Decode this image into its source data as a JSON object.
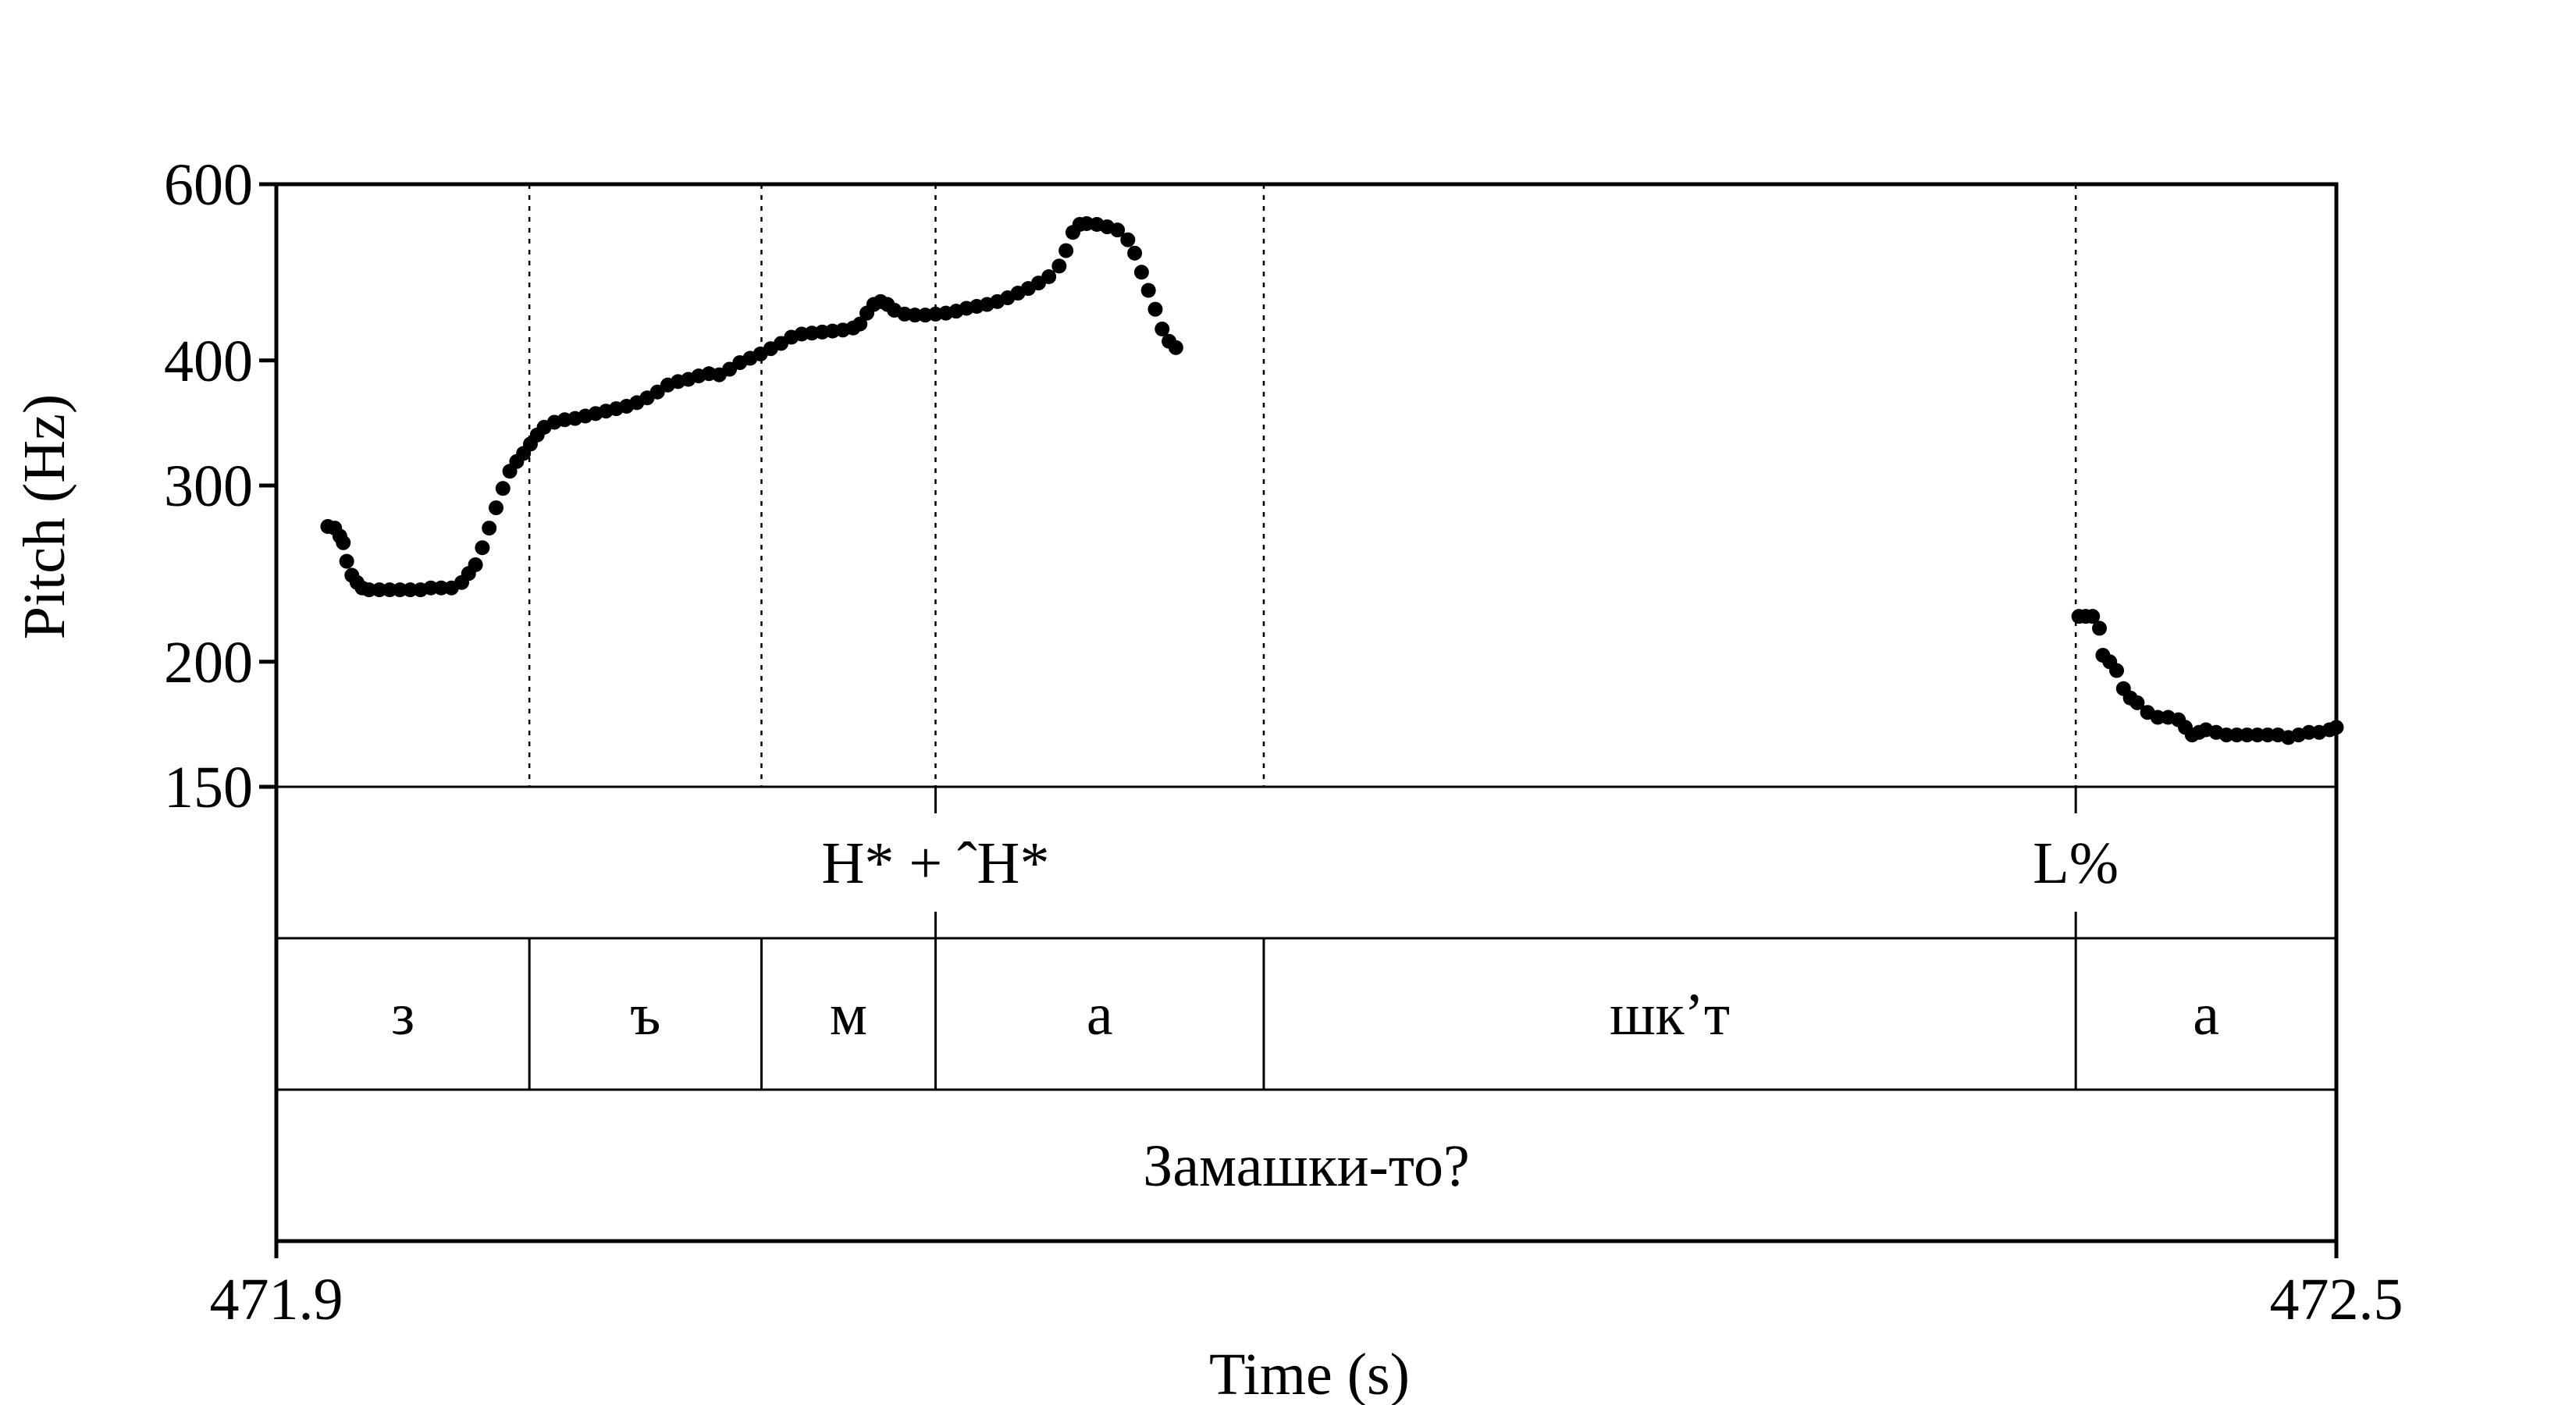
{
  "chart_data": {
    "type": "scatter",
    "title": "",
    "xlabel": "Time (s)",
    "ylabel": "Pitch (Hz)",
    "xlim": [
      471.9,
      472.5
    ],
    "ylim": [
      150,
      600
    ],
    "y_scale": "log",
    "x_tick_labels": [
      "471.9",
      "472.5"
    ],
    "y_ticks": [
      150,
      200,
      300,
      400,
      600
    ],
    "y_tick_labels": [
      "150",
      "200",
      "300",
      "400",
      "600"
    ],
    "grid": false,
    "boundaries": [
      471.9737,
      472.0413,
      472.092,
      472.1876,
      472.4241
    ],
    "tiers": [
      {
        "name": "tones",
        "intervals": [],
        "points": [
          {
            "time": 472.092,
            "label": "H* + ˆH*"
          },
          {
            "time": 472.4241,
            "label": "L%"
          }
        ]
      },
      {
        "name": "phones",
        "intervals": [
          {
            "start": 471.9,
            "end": 471.9737,
            "label": "з"
          },
          {
            "start": 471.9737,
            "end": 472.0413,
            "label": "ъ"
          },
          {
            "start": 472.0413,
            "end": 472.092,
            "label": "м"
          },
          {
            "start": 472.092,
            "end": 472.1876,
            "label": "а"
          },
          {
            "start": 472.1876,
            "end": 472.4241,
            "label": "шк’т"
          },
          {
            "start": 472.4241,
            "end": 472.5,
            "label": "а"
          }
        ],
        "points": []
      },
      {
        "name": "words",
        "intervals": [
          {
            "start": 471.9,
            "end": 472.5,
            "label": "Замашки-то?"
          }
        ],
        "points": []
      }
    ],
    "series": [
      {
        "points": [
          [
            471.915,
            273
          ],
          [
            471.917,
            272
          ],
          [
            471.9185,
            267
          ],
          [
            471.9195,
            263
          ],
          [
            471.9205,
            252
          ],
          [
            471.922,
            244
          ],
          [
            471.9235,
            240
          ],
          [
            471.925,
            237
          ],
          [
            471.927,
            236
          ],
          [
            471.93,
            236
          ],
          [
            471.933,
            236
          ],
          [
            471.936,
            236
          ],
          [
            471.939,
            236
          ],
          [
            471.942,
            236
          ],
          [
            471.945,
            237
          ],
          [
            471.948,
            237
          ],
          [
            471.951,
            237
          ],
          [
            471.954,
            240
          ],
          [
            471.956,
            245
          ],
          [
            471.958,
            250
          ],
          [
            471.96,
            260
          ],
          [
            471.962,
            272
          ],
          [
            471.964,
            285
          ],
          [
            471.966,
            298
          ],
          [
            471.968,
            310
          ],
          [
            471.97,
            317
          ],
          [
            471.972,
            323
          ],
          [
            471.974,
            330
          ],
          [
            471.976,
            337
          ],
          [
            471.978,
            343
          ],
          [
            471.981,
            347
          ],
          [
            471.984,
            349
          ],
          [
            471.987,
            350
          ],
          [
            471.99,
            352
          ],
          [
            471.993,
            354
          ],
          [
            471.996,
            356
          ],
          [
            471.999,
            358
          ],
          [
            472.002,
            360
          ],
          [
            472.005,
            363
          ],
          [
            472.008,
            367
          ],
          [
            472.011,
            372
          ],
          [
            472.014,
            378
          ],
          [
            472.017,
            381
          ],
          [
            472.02,
            383
          ],
          [
            472.023,
            386
          ],
          [
            472.026,
            388
          ],
          [
            472.029,
            387
          ],
          [
            472.032,
            392
          ],
          [
            472.035,
            398
          ],
          [
            472.038,
            402
          ],
          [
            472.041,
            406
          ],
          [
            472.044,
            411
          ],
          [
            472.047,
            416
          ],
          [
            472.05,
            422
          ],
          [
            472.053,
            425
          ],
          [
            472.056,
            426
          ],
          [
            472.059,
            427
          ],
          [
            472.062,
            428
          ],
          [
            472.065,
            429
          ],
          [
            472.068,
            431
          ],
          [
            472.07,
            435
          ],
          [
            472.072,
            446
          ],
          [
            472.074,
            455
          ],
          [
            472.076,
            458
          ],
          [
            472.078,
            455
          ],
          [
            472.08,
            449
          ],
          [
            472.083,
            445
          ],
          [
            472.086,
            444
          ],
          [
            472.089,
            444
          ],
          [
            472.092,
            445
          ],
          [
            472.095,
            446
          ],
          [
            472.098,
            448
          ],
          [
            472.101,
            451
          ],
          [
            472.104,
            453
          ],
          [
            472.107,
            455
          ],
          [
            472.11,
            458
          ],
          [
            472.113,
            462
          ],
          [
            472.116,
            467
          ],
          [
            472.119,
            472
          ],
          [
            472.122,
            478
          ],
          [
            472.125,
            485
          ],
          [
            472.128,
            497
          ],
          [
            472.13,
            515
          ],
          [
            472.132,
            537
          ],
          [
            472.134,
            547
          ],
          [
            472.136,
            548
          ],
          [
            472.139,
            547
          ],
          [
            472.142,
            544
          ],
          [
            472.145,
            540
          ],
          [
            472.148,
            528
          ],
          [
            472.15,
            512
          ],
          [
            472.152,
            490
          ],
          [
            472.154,
            470
          ],
          [
            472.156,
            450
          ],
          [
            472.158,
            430
          ],
          [
            472.16,
            418
          ],
          [
            472.162,
            412
          ],
          [
            472.425,
            222
          ],
          [
            472.427,
            222
          ],
          [
            472.429,
            222
          ],
          [
            472.431,
            216
          ],
          [
            472.432,
            203
          ],
          [
            472.434,
            200
          ],
          [
            472.436,
            196
          ],
          [
            472.438,
            188
          ],
          [
            472.44,
            184
          ],
          [
            472.442,
            182
          ],
          [
            472.445,
            178
          ],
          [
            472.448,
            176
          ],
          [
            472.451,
            176
          ],
          [
            472.454,
            175
          ],
          [
            472.456,
            172
          ],
          [
            472.458,
            169
          ],
          [
            472.46,
            170
          ],
          [
            472.462,
            171
          ],
          [
            472.465,
            170
          ],
          [
            472.468,
            169
          ],
          [
            472.471,
            169
          ],
          [
            472.474,
            169
          ],
          [
            472.477,
            169
          ],
          [
            472.48,
            169
          ],
          [
            472.483,
            169
          ],
          [
            472.486,
            168
          ],
          [
            472.489,
            169
          ],
          [
            472.492,
            170
          ],
          [
            472.495,
            170
          ],
          [
            472.498,
            171
          ],
          [
            472.5,
            172
          ]
        ]
      }
    ]
  }
}
